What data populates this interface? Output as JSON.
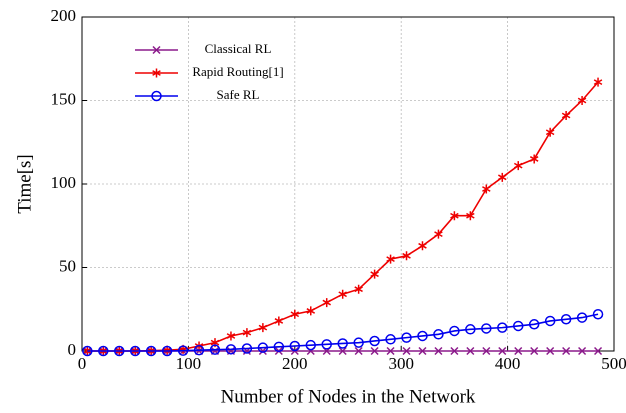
{
  "chart_data": {
    "type": "line",
    "xlabel": "Number of Nodes in the Network",
    "ylabel": "Time[s]",
    "x": [
      5,
      20,
      35,
      50,
      65,
      80,
      95,
      110,
      125,
      140,
      155,
      170,
      185,
      200,
      215,
      230,
      245,
      260,
      275,
      290,
      305,
      320,
      335,
      350,
      365,
      380,
      395,
      410,
      425,
      440,
      455,
      470,
      485
    ],
    "series": [
      {
        "name": "Classical RL",
        "color": "#8b1a8b",
        "marker": "x",
        "values": [
          0,
          0,
          0,
          0,
          0,
          0,
          0,
          0,
          0,
          0,
          0,
          0,
          0,
          0,
          0,
          0,
          0,
          0,
          0,
          0,
          0,
          0,
          0,
          0,
          0,
          0,
          0,
          0,
          0,
          0,
          0,
          0,
          0
        ]
      },
      {
        "name": "Rapid Routing[1]",
        "color": "#ee0000",
        "marker": "star",
        "values": [
          0,
          0,
          0,
          0,
          0.2,
          0.5,
          1,
          3,
          5,
          9,
          11,
          14,
          18,
          22,
          24,
          29,
          34,
          37,
          46,
          55,
          57,
          63,
          70,
          81,
          81,
          97,
          104,
          111,
          115,
          131,
          141,
          150,
          161
        ]
      },
      {
        "name": "Safe RL",
        "color": "#0000ee",
        "marker": "circle",
        "values": [
          0,
          0,
          0,
          0,
          0,
          0,
          0.2,
          0.5,
          0.8,
          1,
          1.5,
          2,
          2.5,
          3,
          3.5,
          4,
          4.5,
          5,
          6,
          7,
          8,
          9,
          10,
          12,
          13,
          13.5,
          14,
          15,
          16,
          18,
          19,
          20,
          22
        ]
      }
    ],
    "xlim": [
      0,
      500
    ],
    "xticks": [
      0,
      100,
      200,
      300,
      400,
      500
    ],
    "ylim": [
      0,
      200
    ],
    "yticks": [
      0,
      50,
      100,
      150,
      200
    ],
    "grid": true,
    "legend": "upper left"
  }
}
